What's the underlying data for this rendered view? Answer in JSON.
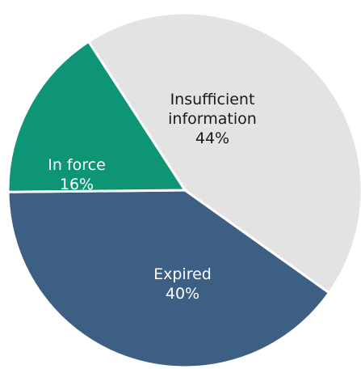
{
  "chart_data": {
    "type": "pie",
    "slices": [
      {
        "label": "Insufficient\ninformation",
        "percent_label": "44%",
        "value": 44,
        "color": "#e3e3e3",
        "text_color": "#1a1a1a"
      },
      {
        "label": "Expired",
        "percent_label": "40%",
        "value": 40,
        "color": "#3d5f84",
        "text_color": "#ffffff"
      },
      {
        "label": "In force",
        "percent_label": "16%",
        "value": 16,
        "color": "#0e9575",
        "text_color": "#ffffff"
      }
    ]
  }
}
